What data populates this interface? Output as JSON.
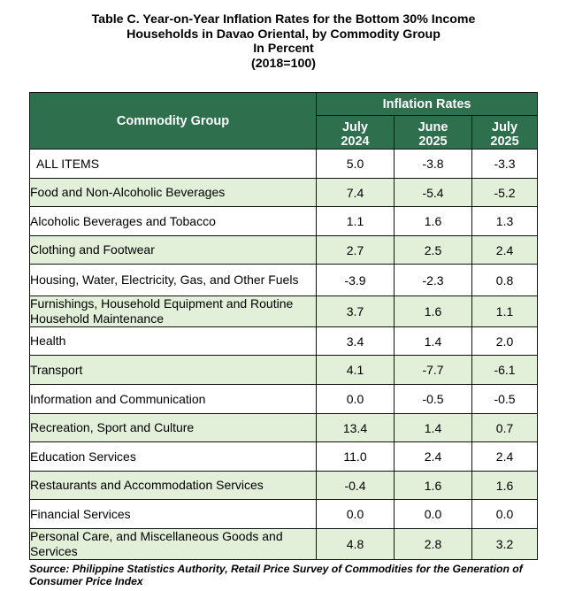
{
  "title": {
    "line1": "Table C. Year-on-Year Inflation Rates for the Bottom 30% Income",
    "line2": "Households in Davao Oriental, by Commodity Group",
    "line3": "In Percent",
    "line4": "(2018=100)"
  },
  "header": {
    "group_label": "Commodity Group",
    "rates_label": "Inflation Rates",
    "periods": [
      {
        "month": "July",
        "year": "2024"
      },
      {
        "month": "June",
        "year": "2025"
      },
      {
        "month": "July",
        "year": "2025"
      }
    ]
  },
  "rows": [
    {
      "name": "ALL ITEMS",
      "values": [
        "5.0",
        "-3.8",
        "-3.3"
      ]
    },
    {
      "name": "Food and Non-Alcoholic Beverages",
      "values": [
        "7.4",
        "-5.4",
        "-5.2"
      ]
    },
    {
      "name": "Alcoholic Beverages and Tobacco",
      "values": [
        "1.1",
        "1.6",
        "1.3"
      ]
    },
    {
      "name": "Clothing and Footwear",
      "values": [
        "2.7",
        "2.5",
        "2.4"
      ]
    },
    {
      "name": "Housing, Water, Electricity, Gas, and Other Fuels",
      "values": [
        "-3.9",
        "-2.3",
        "0.8"
      ]
    },
    {
      "name": "Furnishings, Household Equipment and Routine Household Maintenance",
      "values": [
        "3.7",
        "1.6",
        "1.1"
      ]
    },
    {
      "name": "Health",
      "values": [
        "3.4",
        "1.4",
        "2.0"
      ]
    },
    {
      "name": "Transport",
      "values": [
        "4.1",
        "-7.7",
        "-6.1"
      ]
    },
    {
      "name": "Information and Communication",
      "values": [
        "0.0",
        "-0.5",
        "-0.5"
      ]
    },
    {
      "name": "Recreation, Sport and Culture",
      "values": [
        "13.4",
        "1.4",
        "0.7"
      ]
    },
    {
      "name": "Education Services",
      "values": [
        "11.0",
        "2.4",
        "2.4"
      ]
    },
    {
      "name": "Restaurants and Accommodation Services",
      "values": [
        "-0.4",
        "1.6",
        "1.6"
      ]
    },
    {
      "name": "Financial Services",
      "values": [
        "0.0",
        "0.0",
        "0.0"
      ]
    },
    {
      "name": "Personal Care, and Miscellaneous Goods and Services",
      "values": [
        "4.8",
        "2.8",
        "3.2"
      ]
    }
  ],
  "source": "Source: Philippine Statistics Authority, Retail Price Survey of Commodities for the Generation of Consumer Price Index",
  "colors": {
    "header_bg": "#2e6f4e",
    "shade_bg": "#e2efd9"
  }
}
